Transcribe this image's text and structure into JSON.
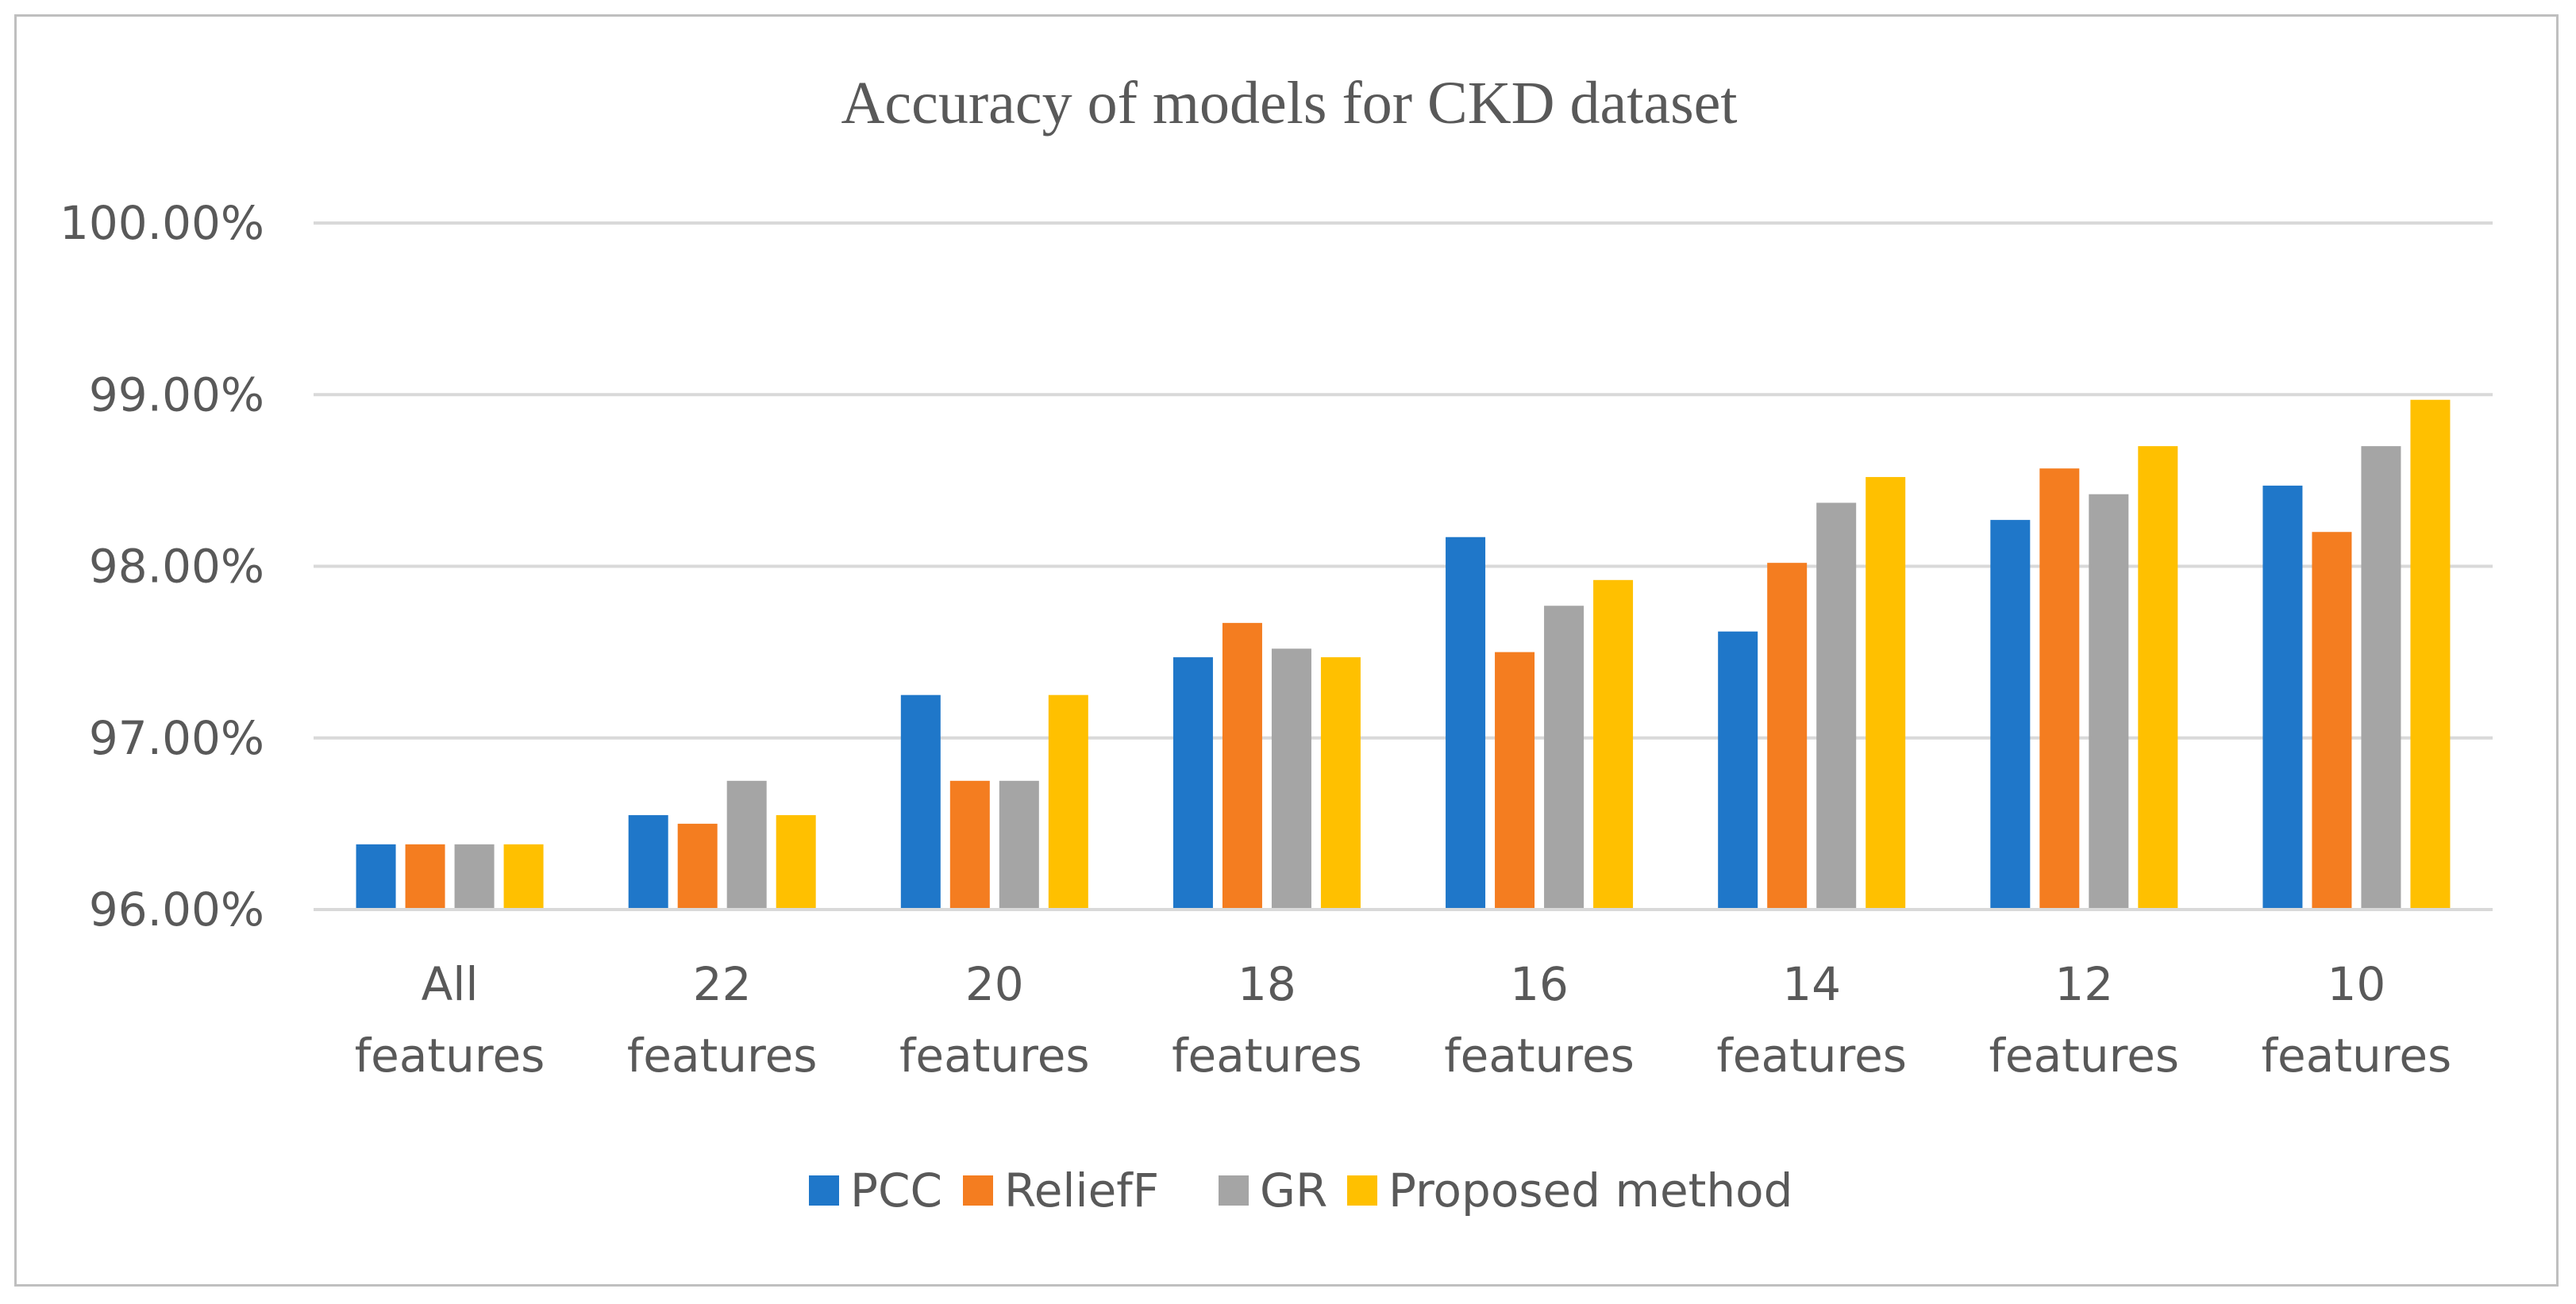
{
  "chart_data": {
    "type": "bar",
    "title": "Accuracy of models for CKD dataset",
    "xlabel": "",
    "ylabel": "",
    "categories": [
      [
        "All",
        "features"
      ],
      [
        "22",
        "features"
      ],
      [
        "20",
        "features"
      ],
      [
        "18",
        "features"
      ],
      [
        "16",
        "features"
      ],
      [
        "14",
        "features"
      ],
      [
        "12",
        "features"
      ],
      [
        "10",
        "features"
      ]
    ],
    "series": [
      {
        "name": "PCC",
        "color": "#1f77c9",
        "values": [
          96.38,
          96.55,
          97.25,
          97.47,
          98.17,
          97.62,
          98.27,
          98.47
        ]
      },
      {
        "name": "ReliefF",
        "color": "#f47d20",
        "values": [
          96.38,
          96.5,
          96.75,
          97.67,
          97.5,
          98.02,
          98.57,
          98.2
        ]
      },
      {
        "name": "GR",
        "color": "#a5a5a5",
        "values": [
          96.38,
          96.75,
          96.75,
          97.52,
          97.77,
          98.37,
          98.42,
          98.7
        ]
      },
      {
        "name": "Proposed method",
        "color": "#ffc000",
        "values": [
          96.38,
          96.55,
          97.25,
          97.47,
          97.92,
          98.52,
          98.7,
          98.97
        ]
      }
    ],
    "ylim": [
      96,
      100
    ],
    "yticks": [
      96,
      97,
      98,
      99,
      100
    ],
    "ytick_labels": [
      "96.00%",
      "97.00%",
      "98.00%",
      "99.00%",
      "100.00%"
    ],
    "grid": true,
    "legend_position": "bottom"
  }
}
